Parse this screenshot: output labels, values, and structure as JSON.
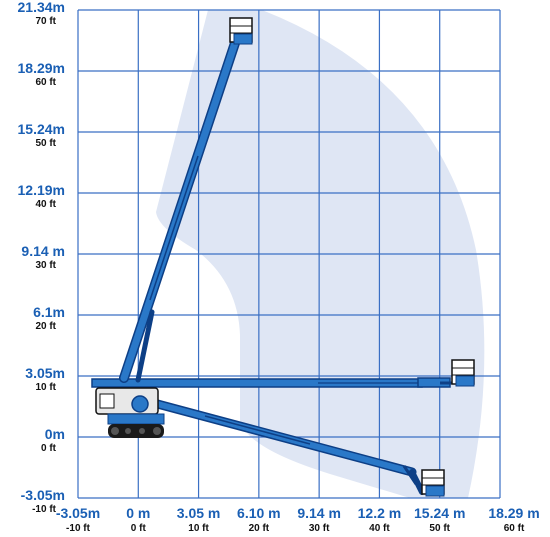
{
  "colors": {
    "label_blue": "#1a5fb4",
    "label_black": "#111111",
    "grid": "#3a6fc4",
    "envelope": "#dfe6f4",
    "boom": "#2a78c8",
    "boom_dark": "#0d3f86",
    "machine": "#e8e8e8",
    "track": "#1a1a1a"
  },
  "y_axis": {
    "ticks": [
      {
        "m": "21.34m",
        "ft": "70 ft"
      },
      {
        "m": "18.29m",
        "ft": "60 ft"
      },
      {
        "m": "15.24m",
        "ft": "50 ft"
      },
      {
        "m": "12.19m",
        "ft": "40 ft"
      },
      {
        "m": "9.14 m",
        "ft": "30 ft"
      },
      {
        "m": "6.1m",
        "ft": "20 ft"
      },
      {
        "m": "3.05m",
        "ft": "10 ft"
      },
      {
        "m": "0m",
        "ft": "0 ft"
      },
      {
        "m": "-3.05m",
        "ft": "-10 ft"
      }
    ]
  },
  "x_axis": {
    "ticks": [
      {
        "m": "-3.05m",
        "ft": "-10 ft"
      },
      {
        "m": "0 m",
        "ft": "0 ft"
      },
      {
        "m": "3.05 m",
        "ft": "10 ft"
      },
      {
        "m": "6.10 m",
        "ft": "20 ft"
      },
      {
        "m": "9.14 m",
        "ft": "30 ft"
      },
      {
        "m": "12.2 m",
        "ft": "40 ft"
      },
      {
        "m": "15.24 m",
        "ft": "50 ft"
      },
      {
        "m": "18.29 m",
        "ft": "60 ft"
      }
    ]
  },
  "diagram": {
    "machine_icon": "boom-lift-machine-icon",
    "platform_icon": "work-platform-basket-icon",
    "boom_positions": [
      "boom-vertical",
      "boom-horizontal",
      "boom-below-grade"
    ]
  }
}
